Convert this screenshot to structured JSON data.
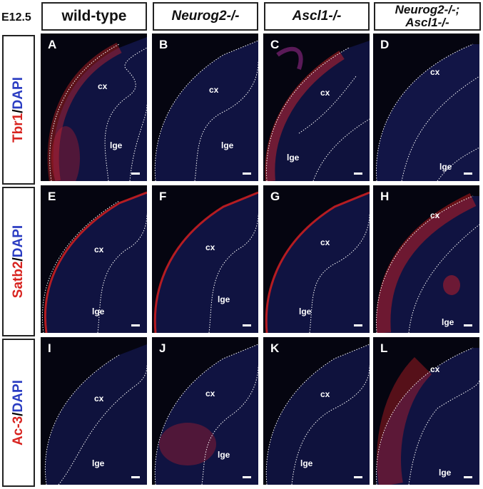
{
  "stage": "E12.5",
  "columns": [
    {
      "label": "wild-type",
      "italic": false
    },
    {
      "label": "Neurog2-/-",
      "italic": true
    },
    {
      "label": "Ascl1-/-",
      "italic": true
    },
    {
      "label_line1": "Neurog2-/-;",
      "label_line2": "Ascl1-/-",
      "italic": true
    }
  ],
  "rows": [
    {
      "marker": "Tbr1",
      "separator": "/",
      "counterstain": "DAPI"
    },
    {
      "marker": "Satb2",
      "separator": "/",
      "counterstain": "DAPI"
    },
    {
      "marker": "Ac-3",
      "separator": "/",
      "counterstain": "DAPI"
    }
  ],
  "panels": [
    "A",
    "B",
    "C",
    "D",
    "E",
    "F",
    "G",
    "H",
    "I",
    "J",
    "K",
    "L"
  ],
  "region_labels": {
    "cortex": "cx",
    "lge": "lge"
  },
  "colors": {
    "marker": "#d8231f",
    "counterstain": "#2a3cc2",
    "background": "#050510",
    "outline": "#ffffff"
  }
}
